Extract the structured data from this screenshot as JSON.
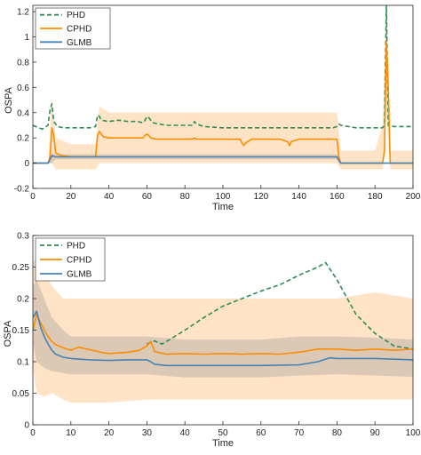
{
  "chart_data": [
    {
      "type": "line",
      "xlabel": "Time",
      "ylabel": "OSPA",
      "xlim": [
        0,
        200
      ],
      "ylim": [
        -0.2,
        1.25
      ],
      "x_ticks": [
        0,
        20,
        40,
        60,
        80,
        100,
        120,
        140,
        160,
        180,
        200
      ],
      "y_ticks": [
        -0.2,
        0,
        0.2,
        0.4,
        0.6,
        0.8,
        1,
        1.2
      ],
      "legend_position": "top-left",
      "series": [
        {
          "name": "PHD",
          "color": "#2e8b57",
          "dash": true,
          "x": [
            0,
            3,
            5,
            8,
            9,
            10,
            11,
            13,
            16,
            20,
            25,
            30,
            33,
            34,
            35,
            36,
            40,
            45,
            50,
            55,
            58,
            59,
            60,
            61,
            63,
            70,
            80,
            84,
            85,
            86,
            90,
            100,
            110,
            120,
            130,
            140,
            150,
            158,
            160,
            161,
            162,
            170,
            180,
            184,
            185,
            186,
            187,
            190,
            195,
            200
          ],
          "y": [
            0.3,
            0.28,
            0.27,
            0.3,
            0.42,
            0.47,
            0.33,
            0.29,
            0.28,
            0.28,
            0.28,
            0.28,
            0.29,
            0.38,
            0.37,
            0.34,
            0.33,
            0.34,
            0.33,
            0.33,
            0.32,
            0.34,
            0.37,
            0.36,
            0.32,
            0.3,
            0.3,
            0.3,
            0.33,
            0.31,
            0.29,
            0.28,
            0.28,
            0.28,
            0.28,
            0.28,
            0.28,
            0.28,
            0.29,
            0.31,
            0.3,
            0.28,
            0.28,
            0.28,
            0.3,
            1.25,
            0.3,
            0.29,
            0.29,
            0.29
          ]
        },
        {
          "name": "CPHD",
          "color": "#ff8c00",
          "dash": false,
          "x": [
            0,
            8,
            9,
            10,
            11,
            12,
            15,
            20,
            25,
            30,
            33,
            34,
            35,
            36,
            37,
            40,
            45,
            50,
            55,
            58,
            59,
            60,
            61,
            62,
            65,
            70,
            80,
            84,
            85,
            86,
            90,
            100,
            109,
            110,
            111,
            112,
            115,
            120,
            130,
            134,
            135,
            136,
            140,
            150,
            160,
            161,
            162,
            170,
            180,
            184,
            185,
            186,
            187,
            188,
            190,
            195,
            200
          ],
          "y": [
            0.0,
            0.0,
            0.05,
            0.28,
            0.22,
            0.08,
            0.06,
            0.05,
            0.05,
            0.05,
            0.05,
            0.22,
            0.25,
            0.23,
            0.21,
            0.2,
            0.2,
            0.2,
            0.2,
            0.2,
            0.22,
            0.23,
            0.22,
            0.2,
            0.19,
            0.19,
            0.19,
            0.19,
            0.2,
            0.19,
            0.19,
            0.19,
            0.19,
            0.16,
            0.14,
            0.16,
            0.19,
            0.19,
            0.19,
            0.17,
            0.14,
            0.17,
            0.19,
            0.19,
            0.19,
            0.05,
            0.0,
            0.0,
            0.0,
            0.0,
            0.1,
            0.96,
            0.6,
            0.0,
            0.0,
            0.0,
            0.0
          ]
        },
        {
          "name": "GLMB",
          "color": "#4682b4",
          "dash": false,
          "x": [
            0,
            8,
            10,
            12,
            15,
            20,
            25,
            30,
            33,
            35,
            40,
            50,
            60,
            70,
            80,
            90,
            100,
            110,
            120,
            130,
            140,
            150,
            160,
            161,
            162,
            170,
            180,
            186,
            188,
            190,
            200
          ],
          "y": [
            0.0,
            0.0,
            0.06,
            0.05,
            0.05,
            0.05,
            0.05,
            0.05,
            0.05,
            0.05,
            0.05,
            0.05,
            0.05,
            0.05,
            0.05,
            0.05,
            0.05,
            0.05,
            0.05,
            0.05,
            0.05,
            0.05,
            0.05,
            0.02,
            0.0,
            0.0,
            0.0,
            0.0,
            0.0,
            0.0,
            0.0
          ]
        }
      ],
      "bands": [
        {
          "color": "#ffcc99",
          "opacity": 0.55,
          "x": [
            0,
            8,
            10,
            12,
            20,
            33,
            35,
            40,
            60,
            80,
            100,
            120,
            140,
            160,
            162,
            180,
            184,
            186,
            188,
            200
          ],
          "lower": [
            0.0,
            0.0,
            0.0,
            -0.05,
            -0.05,
            -0.05,
            0.0,
            0.0,
            0.0,
            0.0,
            0.0,
            0.0,
            0.0,
            0.0,
            -0.05,
            -0.05,
            -0.05,
            0.4,
            -0.05,
            -0.05
          ],
          "upper": [
            0.0,
            0.0,
            0.52,
            0.2,
            0.15,
            0.15,
            0.45,
            0.4,
            0.4,
            0.4,
            0.4,
            0.4,
            0.4,
            0.4,
            0.1,
            0.1,
            0.3,
            1.22,
            0.1,
            0.1
          ]
        },
        {
          "color": "#999999",
          "opacity": 0.35,
          "x": [
            0,
            8,
            10,
            12,
            40,
            60,
            100,
            160,
            162,
            200
          ],
          "lower": [
            0.0,
            0.0,
            0.0,
            0.03,
            0.03,
            0.03,
            0.03,
            0.03,
            0.0,
            0.0
          ],
          "upper": [
            0.0,
            0.0,
            0.08,
            0.07,
            0.07,
            0.07,
            0.07,
            0.07,
            0.0,
            0.0
          ]
        }
      ]
    },
    {
      "type": "line",
      "xlabel": "Time",
      "ylabel": "OSPA",
      "xlim": [
        0,
        100
      ],
      "ylim": [
        0,
        0.3
      ],
      "x_ticks": [
        0,
        10,
        20,
        30,
        40,
        50,
        60,
        70,
        80,
        90,
        100
      ],
      "y_ticks": [
        0,
        0.05,
        0.1,
        0.15,
        0.2,
        0.25,
        0.3
      ],
      "legend_position": "top-left",
      "series": [
        {
          "name": "PHD",
          "color": "#2e8b57",
          "dash": true,
          "x": [
            30,
            32,
            34,
            36,
            40,
            45,
            50,
            55,
            60,
            65,
            70,
            75,
            77,
            80,
            85,
            90,
            95,
            100
          ],
          "y": [
            0.128,
            0.133,
            0.128,
            0.135,
            0.15,
            0.17,
            0.188,
            0.2,
            0.212,
            0.222,
            0.237,
            0.25,
            0.257,
            0.23,
            0.175,
            0.145,
            0.125,
            0.12
          ]
        },
        {
          "name": "CPHD",
          "color": "#ff8c00",
          "dash": false,
          "x": [
            0,
            1,
            2,
            3,
            4,
            5,
            6,
            8,
            10,
            12,
            15,
            18,
            20,
            25,
            28,
            30,
            31,
            32,
            35,
            40,
            45,
            50,
            55,
            60,
            65,
            70,
            75,
            80,
            85,
            90,
            95,
            100
          ],
          "y": [
            0.15,
            0.175,
            0.162,
            0.15,
            0.14,
            0.132,
            0.127,
            0.122,
            0.118,
            0.123,
            0.119,
            0.115,
            0.113,
            0.115,
            0.118,
            0.125,
            0.132,
            0.116,
            0.112,
            0.113,
            0.112,
            0.113,
            0.112,
            0.113,
            0.112,
            0.115,
            0.12,
            0.12,
            0.118,
            0.12,
            0.118,
            0.12
          ]
        },
        {
          "name": "GLMB",
          "color": "#4682b4",
          "dash": false,
          "x": [
            0,
            1,
            2,
            3,
            4,
            5,
            6,
            8,
            10,
            15,
            20,
            25,
            30,
            31,
            32,
            35,
            40,
            50,
            60,
            70,
            75,
            78,
            80,
            85,
            90,
            95,
            100
          ],
          "y": [
            0.17,
            0.18,
            0.155,
            0.14,
            0.128,
            0.118,
            0.112,
            0.107,
            0.105,
            0.103,
            0.102,
            0.103,
            0.103,
            0.1,
            0.096,
            0.094,
            0.094,
            0.094,
            0.094,
            0.095,
            0.1,
            0.106,
            0.105,
            0.105,
            0.105,
            0.104,
            0.103
          ]
        }
      ],
      "bands": [
        {
          "color": "#ffcc99",
          "opacity": 0.55,
          "x": [
            0,
            1,
            3,
            5,
            8,
            10,
            20,
            30,
            40,
            50,
            60,
            70,
            80,
            90,
            100
          ],
          "lower": [
            0.09,
            0.05,
            0.045,
            0.05,
            0.04,
            0.035,
            0.035,
            0.04,
            0.04,
            0.04,
            0.04,
            0.04,
            0.04,
            0.04,
            0.04
          ],
          "upper": [
            0.26,
            0.26,
            0.24,
            0.22,
            0.2,
            0.2,
            0.2,
            0.2,
            0.2,
            0.2,
            0.2,
            0.2,
            0.2,
            0.21,
            0.2
          ]
        },
        {
          "color": "#999999",
          "opacity": 0.35,
          "x": [
            0,
            1,
            3,
            5,
            8,
            10,
            20,
            30,
            40,
            50,
            60,
            70,
            80,
            90,
            100
          ],
          "lower": [
            0.13,
            0.1,
            0.09,
            0.085,
            0.082,
            0.08,
            0.08,
            0.08,
            0.075,
            0.075,
            0.075,
            0.078,
            0.08,
            0.078,
            0.076
          ],
          "upper": [
            0.22,
            0.23,
            0.2,
            0.17,
            0.15,
            0.14,
            0.14,
            0.14,
            0.135,
            0.135,
            0.135,
            0.14,
            0.14,
            0.138,
            0.135
          ]
        }
      ]
    }
  ]
}
